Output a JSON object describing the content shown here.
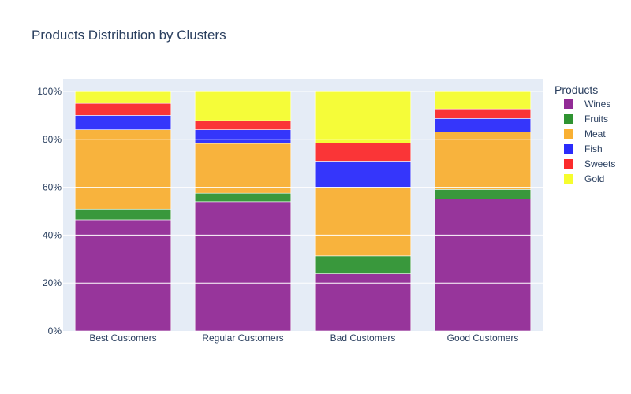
{
  "chart_data": {
    "type": "bar",
    "stacked": true,
    "title": "Products Distribution by Clusters",
    "categories": [
      "Best Customers",
      "Regular Customers",
      "Bad Customers",
      "Good Customers"
    ],
    "yticks": [
      "0%",
      "20%",
      "40%",
      "60%",
      "80%",
      "100%"
    ],
    "ylim": [
      0,
      100
    ],
    "legend_title": "Products",
    "legend_position": "right",
    "plot_background": "#e5ecf6",
    "series": [
      {
        "name": "Wines",
        "color": "#922b96",
        "values": [
          46.4,
          54.0,
          23.8,
          55.1
        ]
      },
      {
        "name": "Fruits",
        "color": "#2f9331",
        "values": [
          4.5,
          3.5,
          7.5,
          4.0
        ]
      },
      {
        "name": "Meat",
        "color": "#f9b033",
        "values": [
          33.1,
          20.8,
          28.7,
          24.0
        ]
      },
      {
        "name": "Fish",
        "color": "#2b2cfb",
        "values": [
          6.0,
          5.7,
          10.9,
          5.6
        ]
      },
      {
        "name": "Sweets",
        "color": "#fb2b2c",
        "values": [
          5.0,
          3.8,
          7.5,
          4.0
        ]
      },
      {
        "name": "Gold",
        "color": "#f6fd2e",
        "values": [
          5.0,
          12.2,
          21.6,
          7.3
        ]
      }
    ]
  }
}
